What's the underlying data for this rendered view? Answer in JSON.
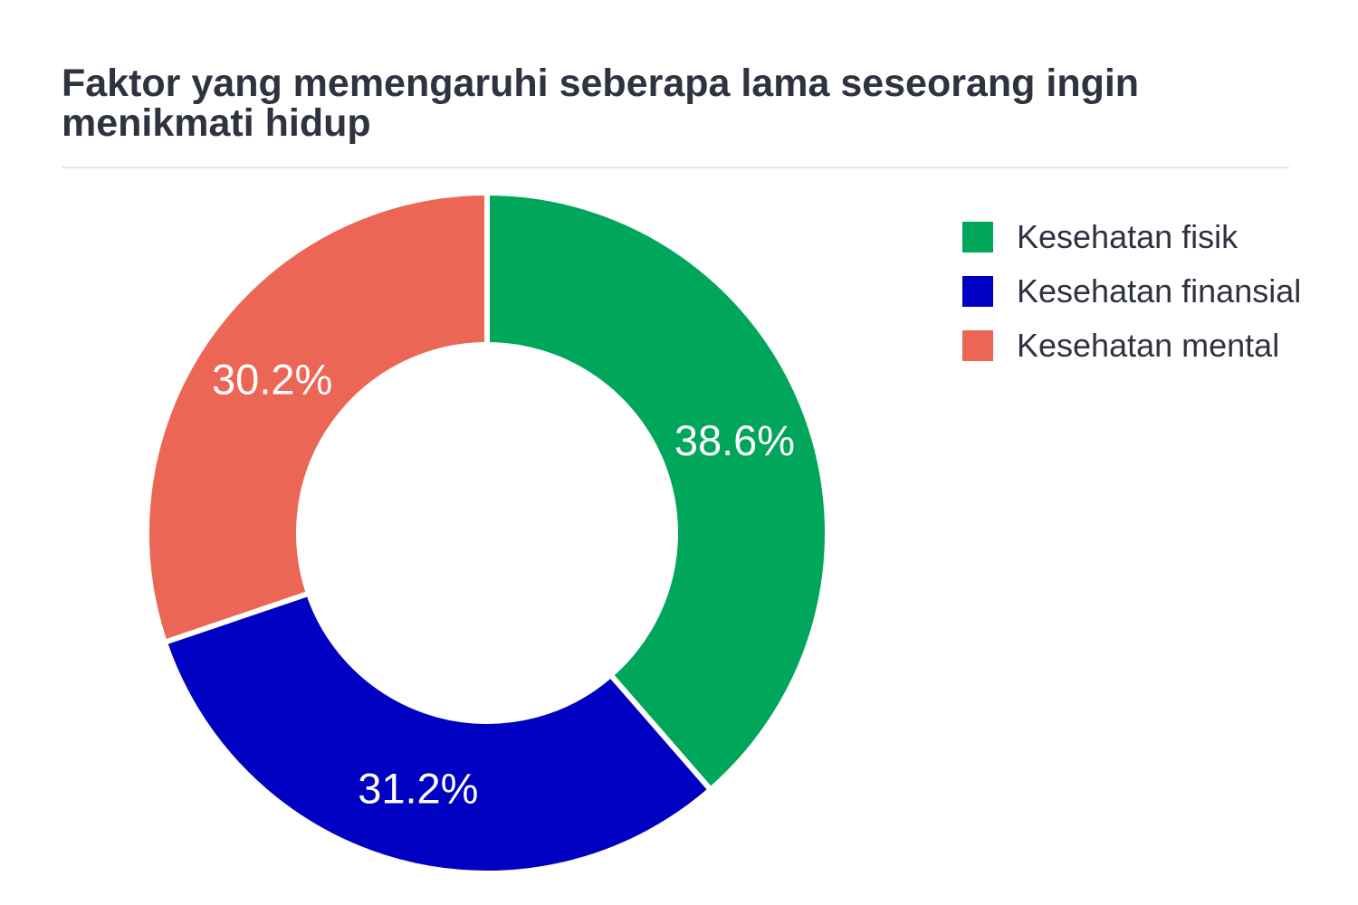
{
  "chart_data": {
    "type": "pie",
    "variant": "donut",
    "title": "Faktor yang memengaruhi seberapa lama seseorang ingin menikmati hidup",
    "legend_position": "top-right",
    "unit": "%",
    "slices": [
      {
        "name": "Kesehatan fisik",
        "value": 38.6,
        "label": "38.6%",
        "color": "#00a65a"
      },
      {
        "name": "Kesehatan finansial",
        "value": 31.2,
        "label": "31.2%",
        "color": "#0000c2"
      },
      {
        "name": "Kesehatan mental",
        "value": 30.2,
        "label": "30.2%",
        "color": "#ec6656"
      }
    ]
  }
}
